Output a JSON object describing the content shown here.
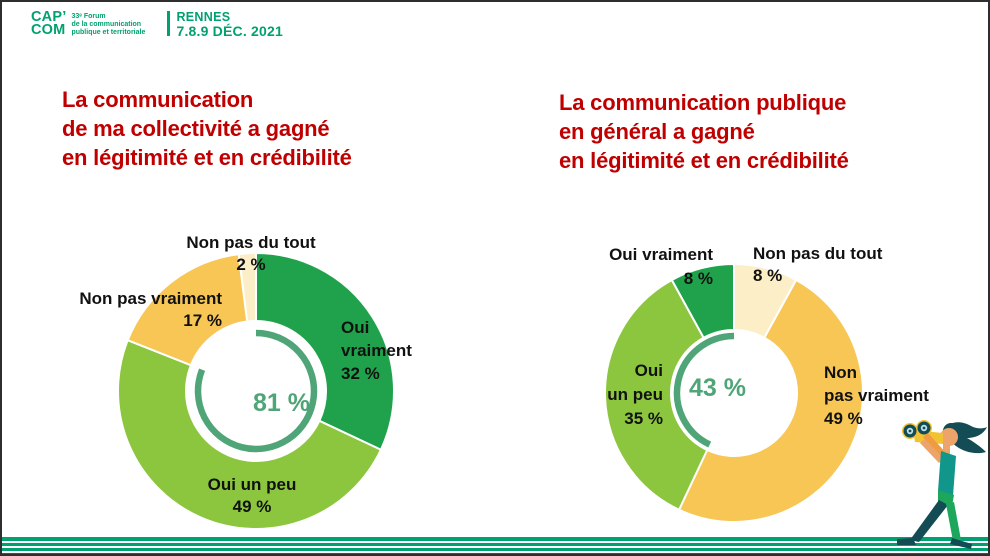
{
  "theme": {
    "brand_green": "#00a170",
    "stripe_dark": "#00714a",
    "title_red": "#c00000",
    "ring_green": "#4fa578",
    "label_black": "#111111",
    "frame_color": "#2e2e2e",
    "seg_dark_green": "#1fa24b",
    "seg_light_green": "#8cc63e",
    "seg_yellow": "#f7c655",
    "seg_cream": "#fcefc7"
  },
  "header": {
    "brand_line1": "CAP’",
    "brand_line2": "COM",
    "forum_lines": [
      "33ᵉ Forum",
      "de la communication",
      "publique et territoriale"
    ],
    "event_city": "RENNES",
    "event_dates": "7.8.9 DÉC. 2021"
  },
  "charts": [
    {
      "title_lines": [
        "La communication",
        "de ma collectivité a gagné",
        "en légitimité et en crédibilité"
      ],
      "center_value": "81 %",
      "ring": {
        "pct": 81,
        "direction": "cw"
      },
      "segments": [
        {
          "label": "Oui vraiment",
          "pct": 32,
          "color_key": "seg_dark_green"
        },
        {
          "label": "Oui un peu",
          "pct": 49,
          "color_key": "seg_light_green"
        },
        {
          "label": "Non pas vraiment",
          "pct": 17,
          "color_key": "seg_yellow"
        },
        {
          "label": "Non pas du tout",
          "pct": 2,
          "color_key": "seg_cream"
        }
      ],
      "callouts": {
        "non_pas_du_tout": [
          "Non pas du tout",
          "2 %"
        ],
        "non_pas_vraiment": [
          "Non pas vraiment",
          "17 %"
        ],
        "oui_vraiment": [
          "Oui",
          "vraiment",
          "32 %"
        ],
        "oui_un_peu": [
          "Oui un peu",
          "49 %"
        ]
      }
    },
    {
      "title_lines": [
        "La communication publique",
        "en général a gagné",
        "en légitimité et en crédibilité"
      ],
      "center_value": "43 %",
      "ring": {
        "pct": 43,
        "direction": "ccw"
      },
      "segments": [
        {
          "label": "Non pas du tout",
          "pct": 8,
          "color_key": "seg_cream"
        },
        {
          "label": "Non pas vraiment",
          "pct": 49,
          "color_key": "seg_yellow"
        },
        {
          "label": "Oui un peu",
          "pct": 35,
          "color_key": "seg_light_green"
        },
        {
          "label": "Oui vraiment",
          "pct": 8,
          "color_key": "seg_dark_green"
        }
      ],
      "callouts": {
        "oui_vraiment": [
          "Oui vraiment",
          "8 %"
        ],
        "non_pas_du_tout": [
          "Non pas du tout",
          "8 %"
        ],
        "oui_un_peu": [
          "Oui",
          "un peu",
          "35 %"
        ],
        "non_pas_vraiment": [
          "Non",
          "pas vraiment",
          "49 %"
        ]
      }
    }
  ],
  "chart_data": [
    {
      "type": "pie",
      "subtype": "donut",
      "title": "La communication de ma collectivité a gagné en légitimité et en crédibilité",
      "categories": [
        "Oui vraiment",
        "Oui un peu",
        "Non pas vraiment",
        "Non pas du tout"
      ],
      "values": [
        32,
        49,
        17,
        2
      ],
      "unit": "%",
      "center_label": "81 %",
      "colors": [
        "#1fa24b",
        "#8cc63e",
        "#f7c655",
        "#fcefc7"
      ],
      "order": "clockwise-from-12-o-clock",
      "legend_position": "labels-around-slices",
      "center_ring": {
        "percent": 81,
        "direction": "clockwise-from-top"
      }
    },
    {
      "type": "pie",
      "subtype": "donut",
      "title": "La communication publique en général a gagné en légitimité et en crédibilité",
      "categories": [
        "Non pas du tout",
        "Non pas vraiment",
        "Oui un peu",
        "Oui vraiment"
      ],
      "values": [
        8,
        49,
        35,
        8
      ],
      "unit": "%",
      "center_label": "43 %",
      "colors": [
        "#fcefc7",
        "#f7c655",
        "#8cc63e",
        "#1fa24b"
      ],
      "order": "clockwise-from-12-o-clock",
      "legend_position": "labels-around-slices",
      "center_ring": {
        "percent": 43,
        "direction": "counterclockwise-from-top"
      }
    }
  ],
  "illustration": {
    "name": "person-with-binoculars"
  }
}
